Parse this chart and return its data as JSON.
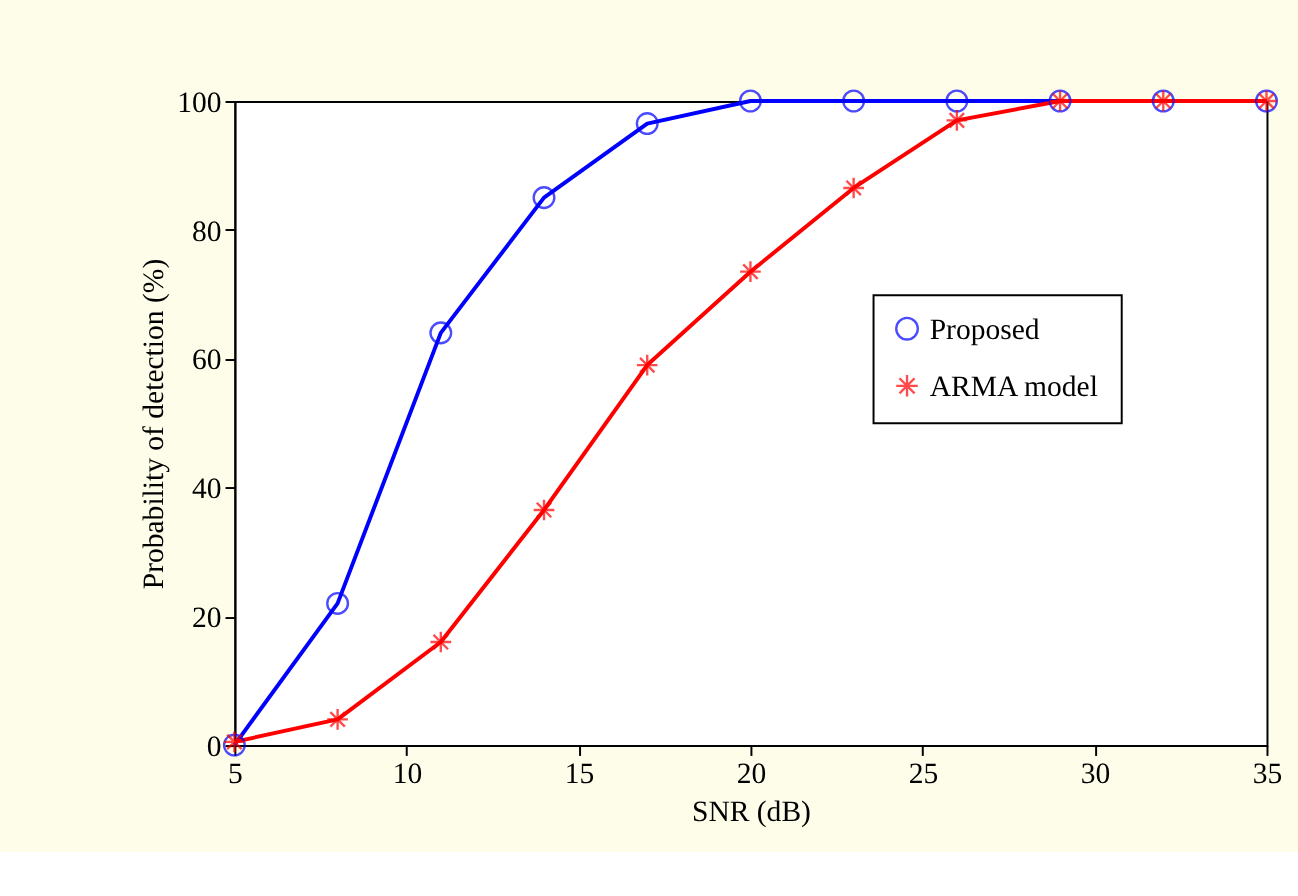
{
  "chart_data": {
    "type": "line",
    "xlabel": "SNR (dB)",
    "ylabel": "Probability of detection (%)",
    "x": [
      5,
      8,
      11,
      14,
      17,
      20,
      23,
      26,
      29,
      32,
      35
    ],
    "series": [
      {
        "name": "Proposed",
        "color": "#0000ff",
        "marker": "circle",
        "values": [
          0,
          22,
          64,
          85,
          96.5,
          100,
          100,
          100,
          100,
          100,
          100
        ]
      },
      {
        "name": "ARMA model",
        "color": "#ff0000",
        "marker": "cross",
        "values": [
          0.5,
          4,
          16,
          36.5,
          59,
          73.5,
          86.5,
          97,
          100,
          100,
          100
        ]
      }
    ],
    "xlim": [
      5,
      35
    ],
    "xticks": [
      5,
      10,
      15,
      20,
      25,
      30,
      35
    ],
    "ylim": [
      0,
      100
    ],
    "yticks": [
      0,
      20,
      40,
      60,
      80,
      100
    ],
    "grid": false,
    "legend": "right",
    "line_style": "solid"
  }
}
